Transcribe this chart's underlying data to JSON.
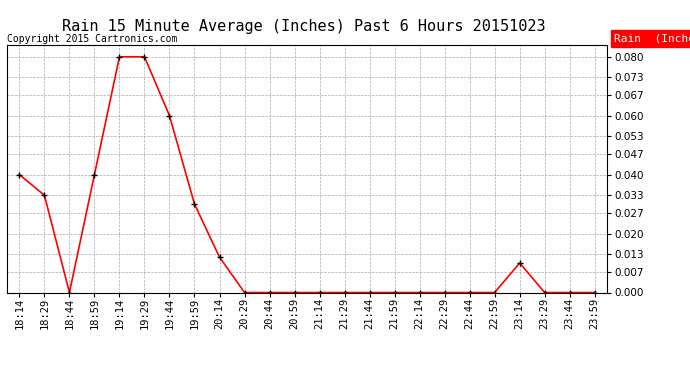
{
  "title": "Rain 15 Minute Average (Inches) Past 6 Hours 20151023",
  "copyright": "Copyright 2015 Cartronics.com",
  "legend_label": "Rain  (Inches)",
  "legend_bg": "#FF0000",
  "legend_text_color": "#FFFFFF",
  "line_color": "#FF0000",
  "marker_color": "#000000",
  "bg_color": "#FFFFFF",
  "grid_color": "#AAAAAA",
  "x_labels": [
    "18:14",
    "18:29",
    "18:44",
    "18:59",
    "19:14",
    "19:29",
    "19:44",
    "19:59",
    "20:14",
    "20:29",
    "20:44",
    "20:59",
    "21:14",
    "21:29",
    "21:44",
    "21:59",
    "22:14",
    "22:29",
    "22:44",
    "22:59",
    "23:14",
    "23:29",
    "23:44",
    "23:59"
  ],
  "y_values": [
    0.04,
    0.033,
    0.0,
    0.04,
    0.08,
    0.08,
    0.06,
    0.03,
    0.012,
    0.0,
    0.0,
    0.0,
    0.0,
    0.0,
    0.0,
    0.0,
    0.0,
    0.0,
    0.0,
    0.0,
    0.01,
    0.0,
    0.0,
    0.0
  ],
  "yticks": [
    0.0,
    0.007,
    0.013,
    0.02,
    0.027,
    0.033,
    0.04,
    0.047,
    0.053,
    0.06,
    0.067,
    0.073,
    0.08
  ],
  "ylim": [
    0.0,
    0.084
  ],
  "title_fontsize": 11,
  "copyright_fontsize": 7,
  "tick_fontsize": 7.5,
  "legend_fontsize": 8
}
